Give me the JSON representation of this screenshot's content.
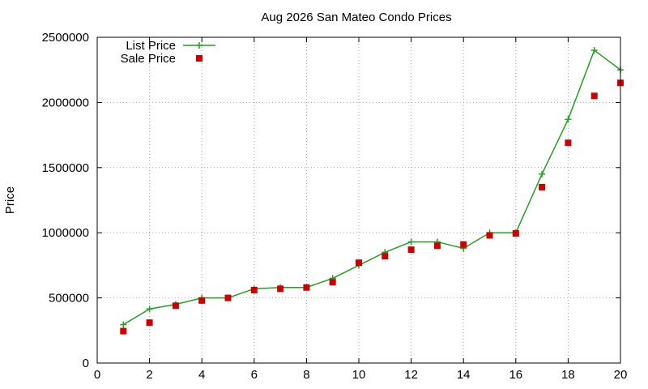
{
  "chart_data": {
    "type": "line",
    "title": "Aug 2026 San Mateo Condo Prices",
    "xlabel": "",
    "ylabel": "Price",
    "xlim": [
      0,
      20
    ],
    "ylim": [
      0,
      2500000
    ],
    "x_ticks": [
      0,
      2,
      4,
      6,
      8,
      10,
      12,
      14,
      16,
      18,
      20
    ],
    "y_ticks": [
      0,
      500000,
      1000000,
      1500000,
      2000000,
      2500000
    ],
    "grid": true,
    "legend_position": "top-left",
    "series": [
      {
        "name": "List Price",
        "style": "line-with-plus-markers",
        "color": "#22a022",
        "x": [
          1,
          2,
          3,
          4,
          5,
          6,
          7,
          8,
          9,
          10,
          11,
          12,
          13,
          14,
          15,
          16,
          17,
          18,
          19,
          20
        ],
        "values": [
          295000,
          415000,
          450000,
          500000,
          500000,
          570000,
          580000,
          580000,
          650000,
          750000,
          850000,
          930000,
          930000,
          880000,
          1000000,
          1000000,
          1450000,
          1870000,
          2400000,
          2250000
        ]
      },
      {
        "name": "Sale Price",
        "style": "square-markers",
        "color": "#cc0000",
        "x": [
          1,
          2,
          3,
          4,
          5,
          6,
          7,
          8,
          9,
          10,
          11,
          12,
          13,
          14,
          15,
          16,
          17,
          18,
          19,
          20
        ],
        "values": [
          245000,
          310000,
          440000,
          480000,
          500000,
          560000,
          570000,
          580000,
          620000,
          770000,
          820000,
          870000,
          900000,
          910000,
          980000,
          995000,
          1350000,
          1690000,
          2050000,
          2150000
        ]
      }
    ]
  }
}
